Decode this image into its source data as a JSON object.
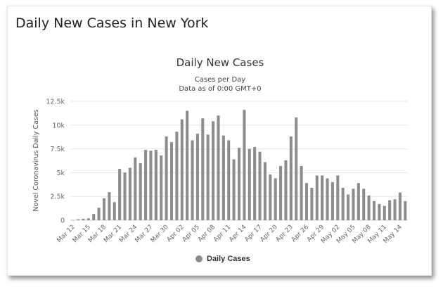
{
  "page": {
    "title": "Daily New Cases in New York"
  },
  "colors": {
    "bar": "#8c8c8c",
    "grid": "#e6e6e6",
    "text": "#333333",
    "axis_text": "#666666"
  },
  "chart_data": {
    "type": "bar",
    "title": "Daily New Cases",
    "subtitle_line1": "Cases per Day",
    "subtitle_line2": "Data as of 0:00 GMT+0",
    "xlabel": "",
    "ylabel": "Novel Coronavirus Daily Cases",
    "ylim": [
      0,
      12500
    ],
    "y_ticks": [
      0,
      2500,
      5000,
      7500,
      10000,
      12500
    ],
    "y_tick_labels": [
      "0",
      "2.5k",
      "5k",
      "7.5k",
      "10k",
      "12.5k"
    ],
    "grid": true,
    "legend_position": "bottom",
    "series": [
      {
        "name": "Daily Cases",
        "values": [
          20,
          90,
          150,
          200,
          650,
          1300,
          2300,
          2950,
          1900,
          5400,
          5000,
          5500,
          6600,
          6000,
          7400,
          7300,
          7400,
          6800,
          8800,
          8200,
          9300,
          10600,
          11500,
          8400,
          9100,
          10700,
          9000,
          10400,
          11000,
          8900,
          8400,
          6400,
          7600,
          11600,
          7500,
          7700,
          7200,
          6100,
          4800,
          4400,
          5700,
          6300,
          8800,
          10800,
          5700,
          3900,
          3400,
          4700,
          4700,
          4400,
          4000,
          4700,
          3400,
          2700,
          3300,
          3900,
          3300,
          2600,
          2000,
          1700,
          1500,
          2100,
          2200,
          2900,
          2000
        ]
      }
    ],
    "x_ticks": [
      {
        "index": 0,
        "label": "Mar 12"
      },
      {
        "index": 3,
        "label": "Mar 15"
      },
      {
        "index": 6,
        "label": "Mar 18"
      },
      {
        "index": 9,
        "label": "Mar 21"
      },
      {
        "index": 12,
        "label": "Mar 24"
      },
      {
        "index": 15,
        "label": "Mar 27"
      },
      {
        "index": 18,
        "label": "Mar 30"
      },
      {
        "index": 21,
        "label": "Apr 02"
      },
      {
        "index": 24,
        "label": "Apr 05"
      },
      {
        "index": 27,
        "label": "Apr 08"
      },
      {
        "index": 30,
        "label": "Apr 11"
      },
      {
        "index": 33,
        "label": "Apr 14"
      },
      {
        "index": 36,
        "label": "Apr 17"
      },
      {
        "index": 39,
        "label": "Apr 20"
      },
      {
        "index": 42,
        "label": "Apr 23"
      },
      {
        "index": 45,
        "label": "Apr 26"
      },
      {
        "index": 48,
        "label": "Apr 29"
      },
      {
        "index": 51,
        "label": "May 02"
      },
      {
        "index": 54,
        "label": "May 05"
      },
      {
        "index": 57,
        "label": "May 08"
      },
      {
        "index": 60,
        "label": "May 11"
      },
      {
        "index": 63,
        "label": "May 14"
      }
    ]
  }
}
